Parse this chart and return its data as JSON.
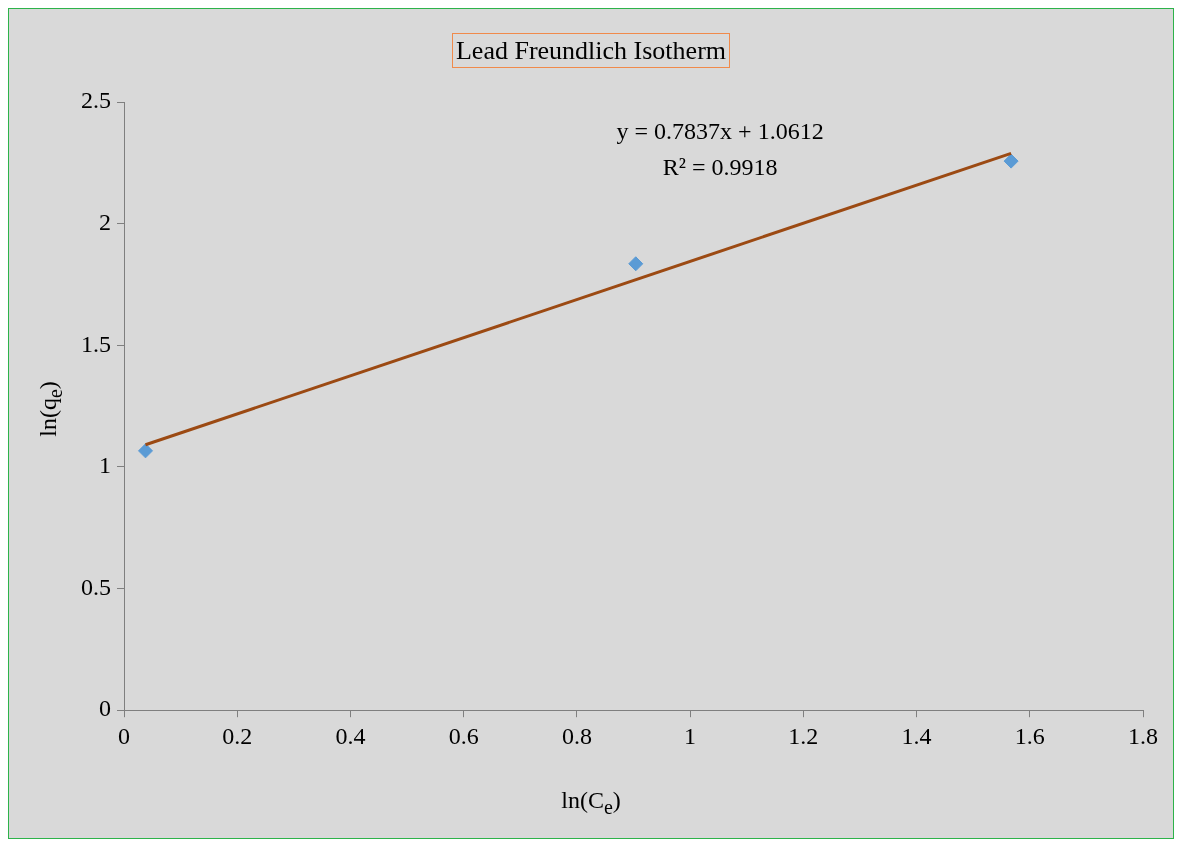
{
  "chart_data": {
    "type": "scatter",
    "title": "Lead Freundlich Isotherm",
    "xlabel": "ln(C$_{e}$)",
    "ylabel": "ln(q$_{e}$)",
    "series": [
      {
        "type": "scatter",
        "color": "#5b9bd5",
        "marker": "diamond",
        "x": [
          0.038,
          0.904,
          1.567
        ],
        "values": [
          1.066,
          1.835,
          2.257
        ]
      },
      {
        "type": "line",
        "color": "#9c4a13",
        "marker": "none",
        "x": [
          0.038,
          1.567
        ],
        "values": [
          1.091,
          2.289
        ]
      }
    ],
    "xlim": [
      0,
      1.8
    ],
    "xticks": [
      0,
      0.2,
      0.4,
      0.6,
      0.8,
      1,
      1.2,
      1.4,
      1.6,
      1.8
    ],
    "ylim": [
      0,
      2.5
    ],
    "yticks": [
      0,
      0.5,
      1,
      1.5,
      2,
      2.5
    ],
    "annotations": [
      "y = 0.7837x + 1.0612",
      "R² = 0.9918"
    ],
    "grid": false,
    "legend": false
  }
}
